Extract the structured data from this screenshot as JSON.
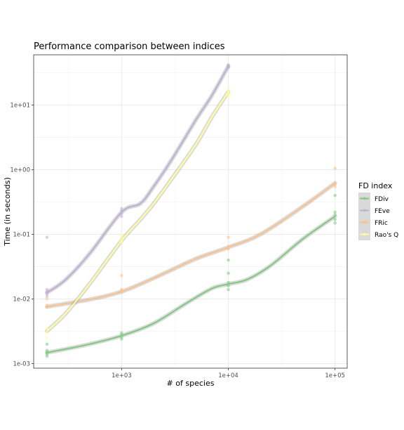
{
  "chart_data": {
    "type": "scatter",
    "title": "Performance comparison between indices",
    "xlabel": "# of species",
    "ylabel": "Time (in seconds)",
    "x_scale": "log",
    "y_scale": "log",
    "xlim": [
      150,
      130000
    ],
    "ylim": [
      0.00085,
      60
    ],
    "x_ticks": [
      {
        "value": 1000,
        "label": "1e+03"
      },
      {
        "value": 10000,
        "label": "1e+04"
      },
      {
        "value": 100000,
        "label": "1e+05"
      }
    ],
    "y_ticks": [
      {
        "value": 0.001,
        "label": "1e-03"
      },
      {
        "value": 0.01,
        "label": "1e-02"
      },
      {
        "value": 0.1,
        "label": "1e-01"
      },
      {
        "value": 1,
        "label": "1e+00"
      },
      {
        "value": 10,
        "label": "1e+01"
      }
    ],
    "grid": true,
    "legend": {
      "title": "FD index",
      "placement": "right"
    },
    "series": [
      {
        "name": "FDiv",
        "color": "#7fc97f",
        "points": [
          [
            200,
            0.0013
          ],
          [
            200,
            0.0014
          ],
          [
            200,
            0.0015
          ],
          [
            200,
            0.0016
          ],
          [
            200,
            0.002
          ],
          [
            1000,
            0.0024
          ],
          [
            1000,
            0.0026
          ],
          [
            1000,
            0.0028
          ],
          [
            1000,
            0.003
          ],
          [
            10000,
            0.014
          ],
          [
            10000,
            0.016
          ],
          [
            10000,
            0.018
          ],
          [
            10000,
            0.025
          ],
          [
            10000,
            0.04
          ],
          [
            100000,
            0.15
          ],
          [
            100000,
            0.17
          ],
          [
            100000,
            0.2
          ],
          [
            100000,
            0.22
          ],
          [
            100000,
            0.4
          ]
        ],
        "smooth": [
          [
            200,
            0.00148
          ],
          [
            300,
            0.00168
          ],
          [
            500,
            0.002
          ],
          [
            1000,
            0.0027
          ],
          [
            2000,
            0.0042
          ],
          [
            4000,
            0.0085
          ],
          [
            7000,
            0.0145
          ],
          [
            10000,
            0.017
          ],
          [
            15000,
            0.02
          ],
          [
            25000,
            0.033
          ],
          [
            50000,
            0.085
          ],
          [
            100000,
            0.19
          ]
        ]
      },
      {
        "name": "FEve",
        "color": "#beaed4",
        "points": [
          [
            200,
            0.011
          ],
          [
            200,
            0.012
          ],
          [
            200,
            0.013
          ],
          [
            200,
            0.014
          ],
          [
            200,
            0.09
          ],
          [
            1000,
            0.19
          ],
          [
            1000,
            0.21
          ],
          [
            1000,
            0.23
          ],
          [
            1000,
            0.25
          ],
          [
            10000,
            38
          ],
          [
            10000,
            40
          ],
          [
            10000,
            42
          ]
        ],
        "smooth": [
          [
            200,
            0.0125
          ],
          [
            300,
            0.02
          ],
          [
            500,
            0.05
          ],
          [
            1000,
            0.22
          ],
          [
            1500,
            0.3
          ],
          [
            2000,
            0.55
          ],
          [
            3000,
            1.5
          ],
          [
            5000,
            6
          ],
          [
            7000,
            14
          ],
          [
            10000,
            40
          ]
        ]
      },
      {
        "name": "FRic",
        "color": "#fdc086",
        "points": [
          [
            200,
            0.0075
          ],
          [
            200,
            0.008
          ],
          [
            200,
            0.01
          ],
          [
            1000,
            0.013
          ],
          [
            1000,
            0.014
          ],
          [
            1000,
            0.023
          ],
          [
            10000,
            0.06
          ],
          [
            10000,
            0.065
          ],
          [
            10000,
            0.09
          ],
          [
            100000,
            0.55
          ],
          [
            100000,
            0.6
          ],
          [
            100000,
            1.05
          ]
        ],
        "smooth": [
          [
            200,
            0.0076
          ],
          [
            500,
            0.0098
          ],
          [
            1000,
            0.013
          ],
          [
            2000,
            0.021
          ],
          [
            5000,
            0.042
          ],
          [
            10000,
            0.063
          ],
          [
            20000,
            0.1
          ],
          [
            50000,
            0.27
          ],
          [
            100000,
            0.62
          ]
        ]
      },
      {
        "name": "Rao's Q",
        "color": "#ffff99",
        "points": [
          [
            200,
            0.0025
          ],
          [
            200,
            0.003
          ],
          [
            200,
            0.0035
          ],
          [
            1000,
            0.075
          ],
          [
            1000,
            0.08
          ],
          [
            1000,
            0.09
          ],
          [
            1000,
            0.1
          ],
          [
            10000,
            14
          ],
          [
            10000,
            15
          ],
          [
            10000,
            16
          ],
          [
            10000,
            17
          ]
        ],
        "smooth": [
          [
            200,
            0.0032
          ],
          [
            300,
            0.006
          ],
          [
            500,
            0.017
          ],
          [
            1000,
            0.08
          ],
          [
            1500,
            0.17
          ],
          [
            2000,
            0.3
          ],
          [
            3000,
            0.75
          ],
          [
            5000,
            2.5
          ],
          [
            7000,
            6.5
          ],
          [
            10000,
            16
          ]
        ]
      }
    ]
  }
}
